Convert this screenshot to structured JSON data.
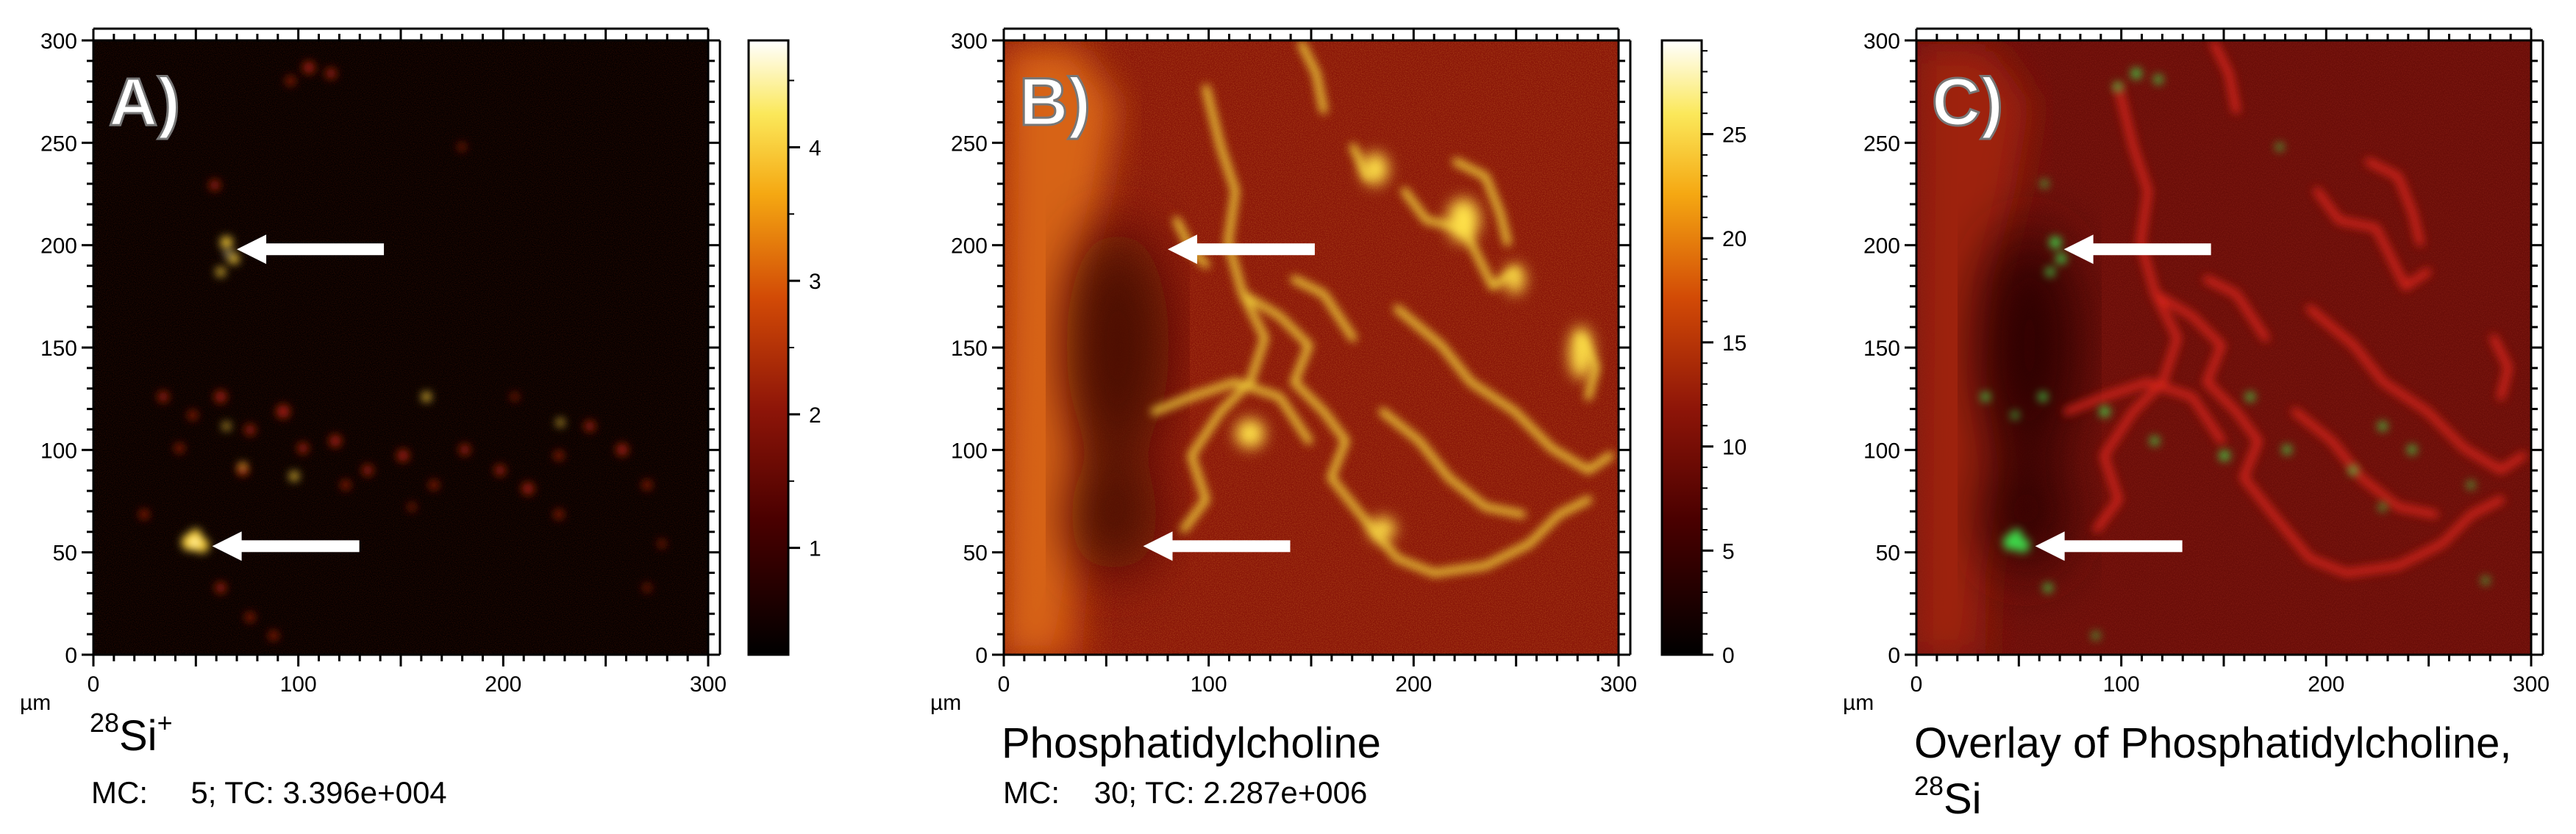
{
  "colors": {
    "panel_a_background": "#040000",
    "panel_b_background": "#8a1608",
    "panel_c_background": "#6a0d08",
    "hot_spot": "#ffe04a",
    "signal_green": "#3cd84a",
    "overlay_red": "#d4241a",
    "arrow": "#ffffff"
  },
  "axes": {
    "unit_label": "µm",
    "x_ticks": [
      "0",
      "100",
      "200",
      "300"
    ],
    "y_ticks": [
      "0",
      "50",
      "100",
      "150",
      "200",
      "250",
      "300"
    ],
    "range": [
      0,
      300
    ]
  },
  "panels": [
    {
      "letter": "A)",
      "caption_superscript": "28",
      "caption_main": "Si",
      "caption_suffix": "+",
      "stats": "MC:     5; TC: 3.396e+004",
      "colorbar_ticks": [
        "1",
        "2",
        "3",
        "4"
      ],
      "colorbar_range": [
        0.2,
        4.8
      ],
      "arrow_tips_um": [
        [
          70,
          198
        ],
        [
          58,
          53
        ]
      ]
    },
    {
      "letter": "B)",
      "caption_main": "Phosphatidylcholine",
      "stats": "MC:    30; TC: 2.287e+006",
      "colorbar_ticks": [
        "0",
        "5",
        "10",
        "15",
        "20",
        "25"
      ],
      "colorbar_range": [
        0,
        29.5
      ],
      "arrow_tips_um": [
        [
          80,
          198
        ],
        [
          68,
          53
        ]
      ]
    },
    {
      "letter": "C)",
      "caption_line1": "Overlay of Phosphatidylcholine,",
      "caption_superscript": "28",
      "caption_main": "Si",
      "arrow_tips_um": [
        [
          72,
          198
        ],
        [
          58,
          53
        ]
      ]
    }
  ]
}
